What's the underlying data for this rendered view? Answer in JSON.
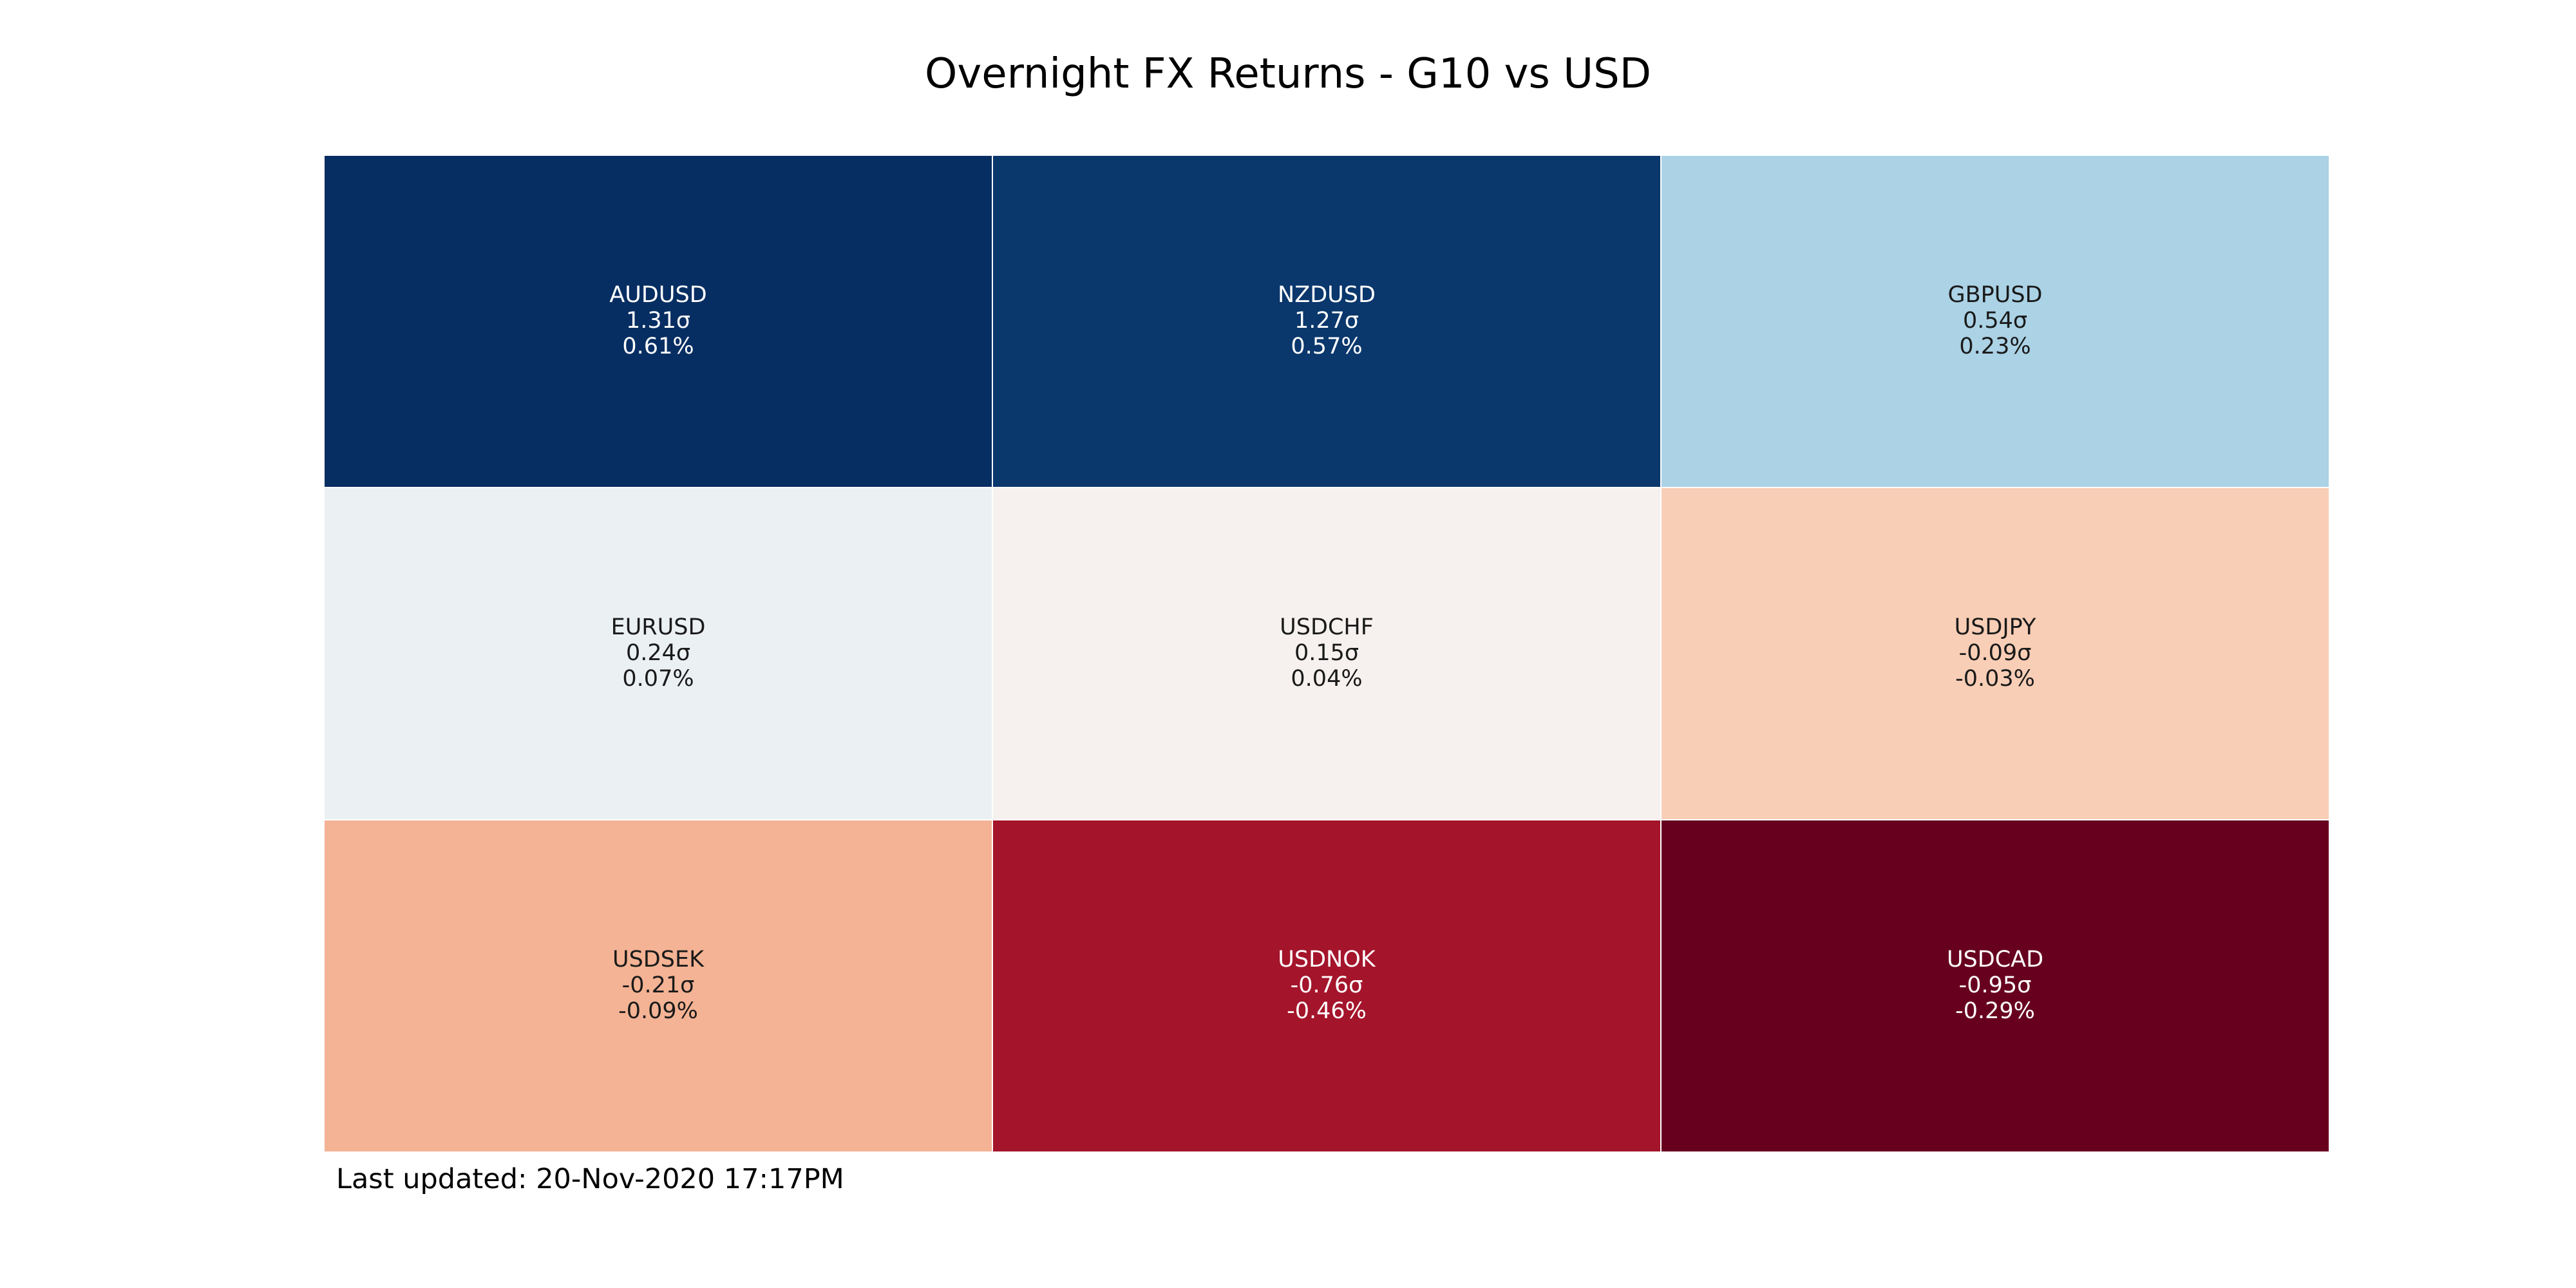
{
  "chart_data": {
    "type": "heatmap",
    "title": "Overnight FX Returns - G10 vs USD",
    "grid": {
      "rows": 3,
      "cols": 3
    },
    "color_scale": "RdBu",
    "cells": [
      {
        "pair": "AUDUSD",
        "sigma": 1.31,
        "sigma_label": "1.31σ",
        "return_pct": 0.61,
        "return_label": "0.61%",
        "fill": "#072e62",
        "text_color": "#ffffff"
      },
      {
        "pair": "NZDUSD",
        "sigma": 1.27,
        "sigma_label": "1.27σ",
        "return_pct": 0.57,
        "return_label": "0.57%",
        "fill": "#0a376c",
        "text_color": "#ffffff"
      },
      {
        "pair": "GBPUSD",
        "sigma": 0.54,
        "sigma_label": "0.54σ",
        "return_pct": 0.23,
        "return_label": "0.23%",
        "fill": "#abd2e5",
        "text_color": "#1a1a1a"
      },
      {
        "pair": "EURUSD",
        "sigma": 0.24,
        "sigma_label": "0.24σ",
        "return_pct": 0.07,
        "return_label": "0.07%",
        "fill": "#ebf0f3",
        "text_color": "#1a1a1a"
      },
      {
        "pair": "USDCHF",
        "sigma": 0.15,
        "sigma_label": "0.15σ",
        "return_pct": 0.04,
        "return_label": "0.04%",
        "fill": "#f6f1ef",
        "text_color": "#1a1a1a"
      },
      {
        "pair": "USDJPY",
        "sigma": -0.09,
        "sigma_label": "-0.09σ",
        "return_pct": -0.03,
        "return_label": "-0.03%",
        "fill": "#f9ceb6",
        "text_color": "#1a1a1a"
      },
      {
        "pair": "USDSEK",
        "sigma": -0.21,
        "sigma_label": "-0.21σ",
        "return_pct": -0.09,
        "return_label": "-0.09%",
        "fill": "#f4b394",
        "text_color": "#1a1a1a"
      },
      {
        "pair": "USDNOK",
        "sigma": -0.76,
        "sigma_label": "-0.76σ",
        "return_pct": -0.46,
        "return_label": "-0.46%",
        "fill": "#a4152b",
        "text_color": "#ffffff"
      },
      {
        "pair": "USDCAD",
        "sigma": -0.95,
        "sigma_label": "-0.95σ",
        "return_pct": -0.29,
        "return_label": "-0.29%",
        "fill": "#67001f",
        "text_color": "#ffffff"
      }
    ],
    "footer": "Last updated: 20-Nov-2020 17:17PM"
  }
}
